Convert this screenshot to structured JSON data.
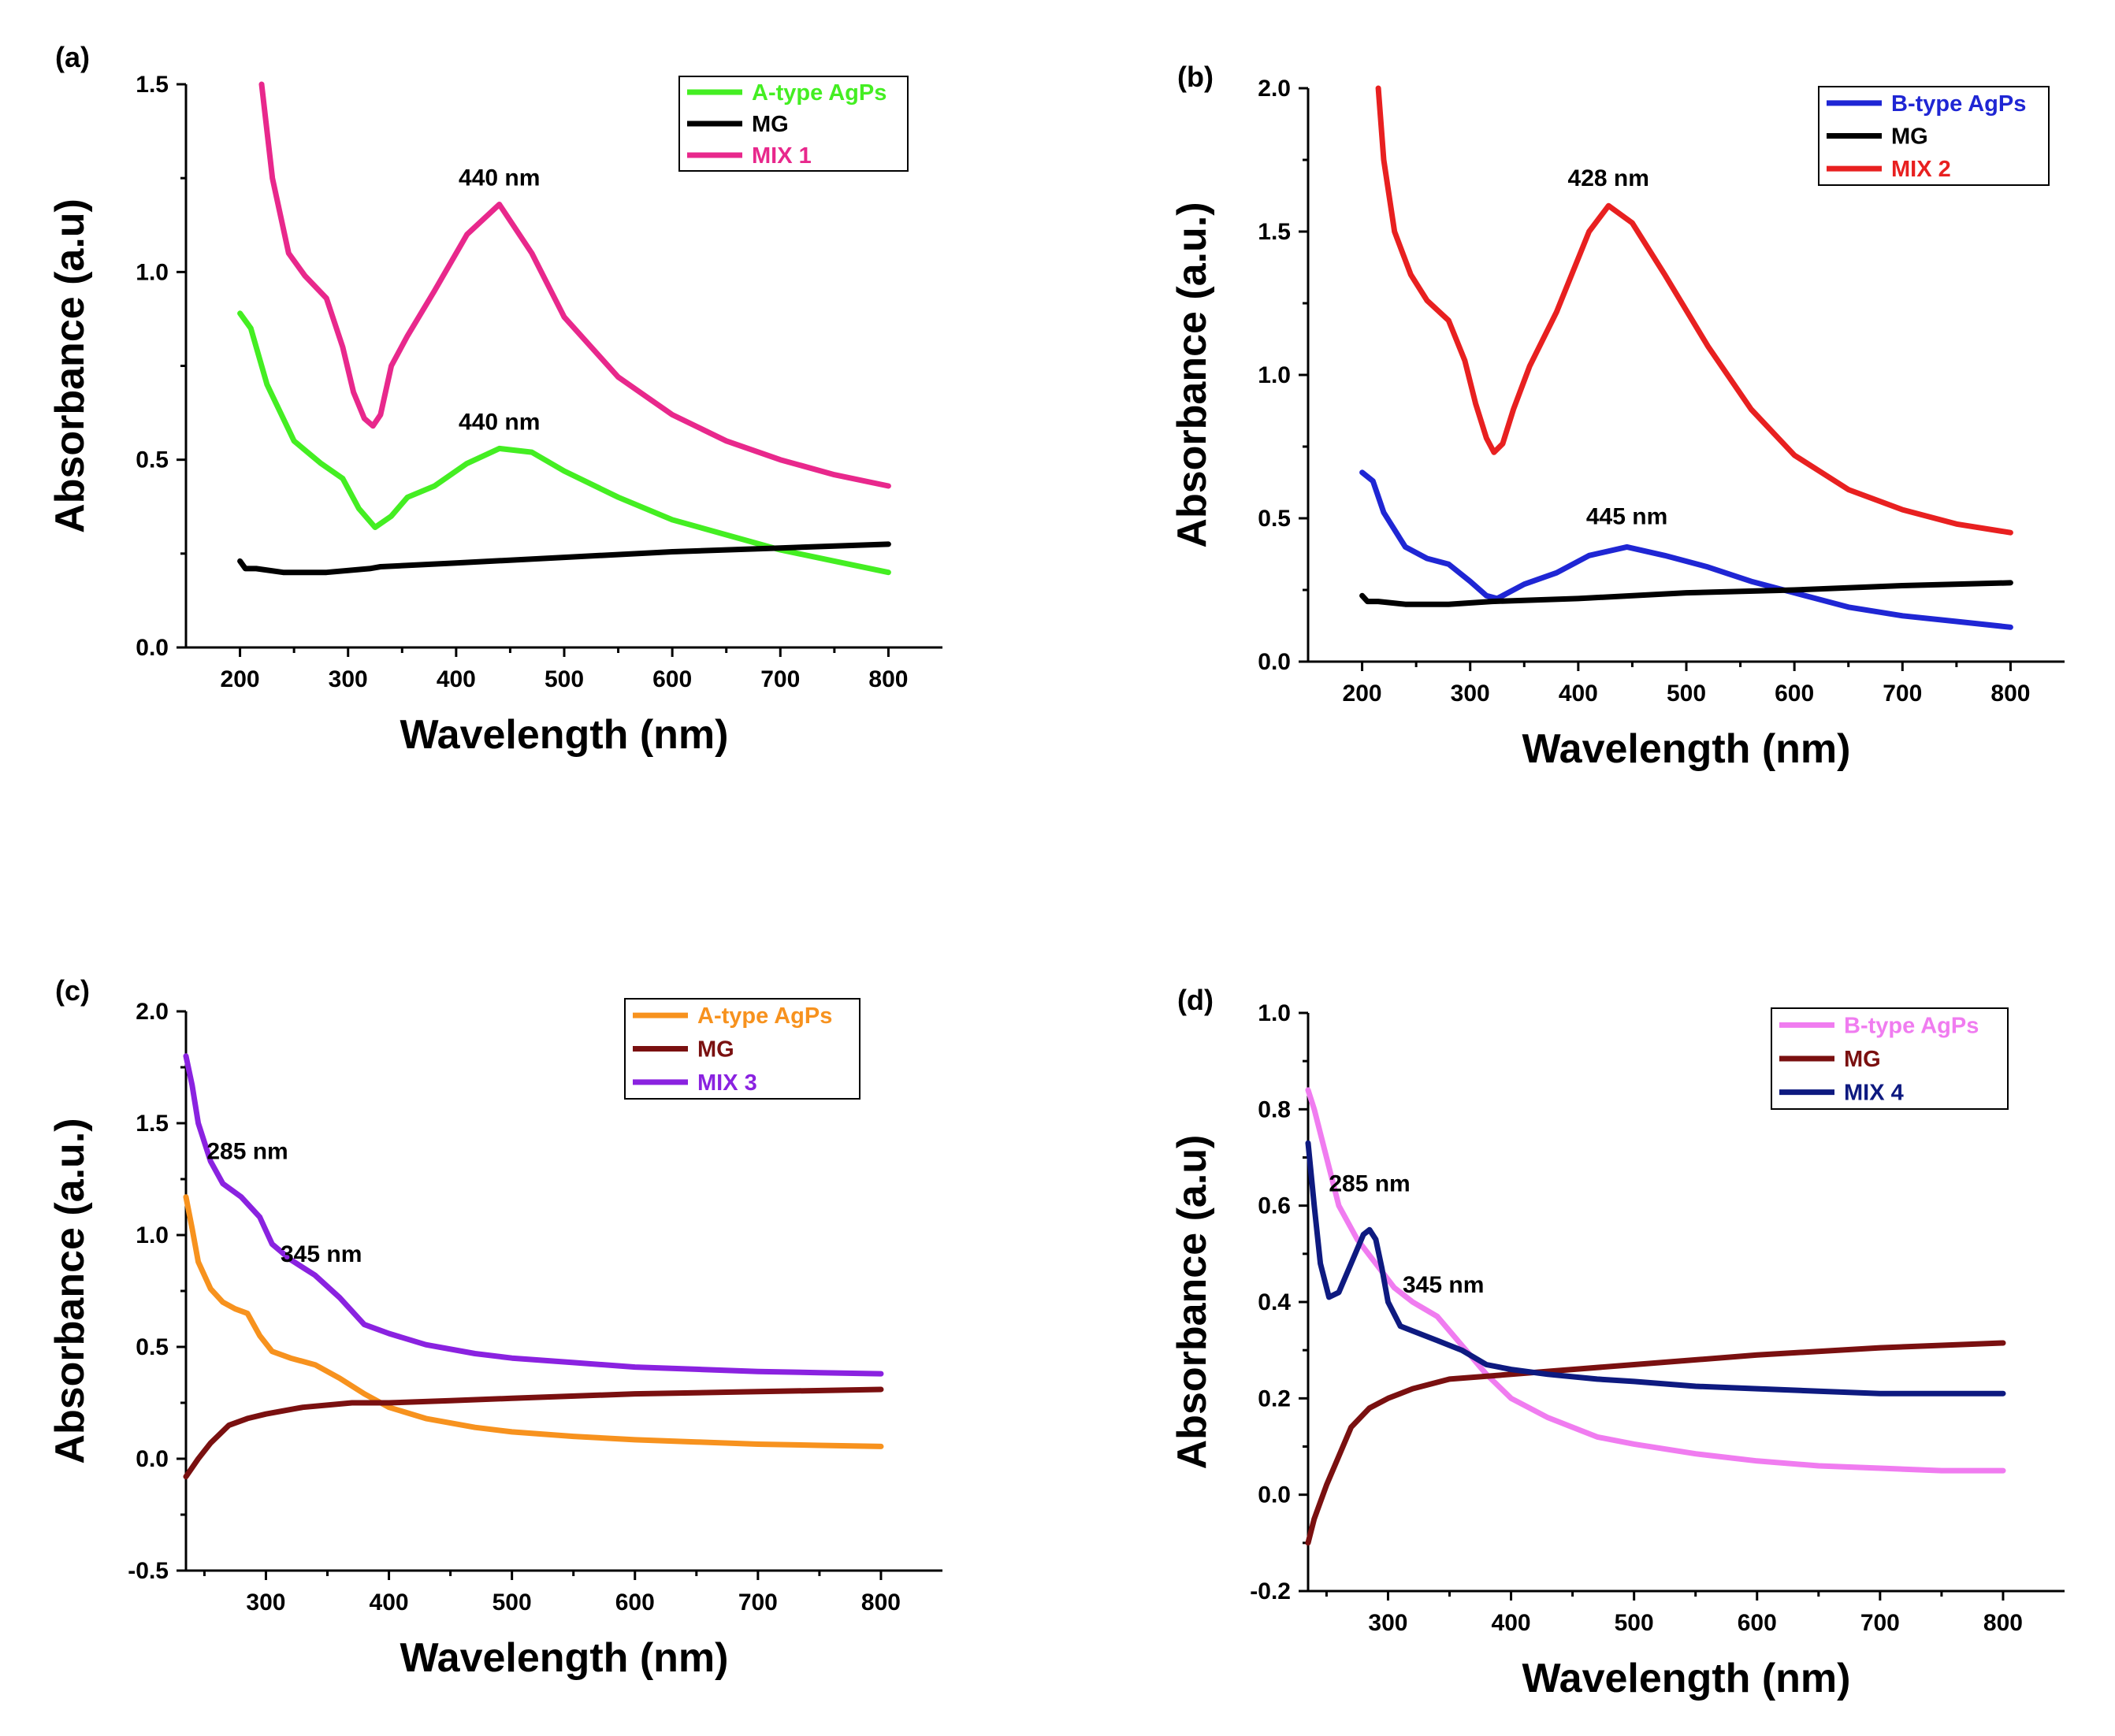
{
  "chart_data": [
    {
      "type": "line",
      "panel": "(a)",
      "xlabel": "Wavelength (nm)",
      "ylabel": "Absorbance (a.u)",
      "xlim": [
        150,
        850
      ],
      "ylim": [
        0.0,
        1.5
      ],
      "xticks": [
        200,
        300,
        400,
        500,
        600,
        700,
        800
      ],
      "yticks": [
        0.0,
        0.5,
        1.0,
        1.5
      ],
      "ytick_labels": [
        "0.0",
        "0.5",
        "1.0",
        "1.5"
      ],
      "legend_position": "top-right",
      "series": [
        {
          "name": "A-type AgPs",
          "color": "#44ee22",
          "x": [
            200,
            210,
            225,
            250,
            275,
            295,
            310,
            325,
            340,
            355,
            380,
            410,
            440,
            470,
            500,
            550,
            600,
            650,
            700,
            750,
            800
          ],
          "y": [
            0.89,
            0.85,
            0.7,
            0.55,
            0.49,
            0.45,
            0.37,
            0.32,
            0.35,
            0.4,
            0.43,
            0.49,
            0.53,
            0.52,
            0.47,
            0.4,
            0.34,
            0.3,
            0.26,
            0.23,
            0.2
          ]
        },
        {
          "name": "MG",
          "color": "#000000",
          "x": [
            200,
            205,
            215,
            240,
            280,
            320,
            330,
            400,
            500,
            600,
            700,
            800
          ],
          "y": [
            0.23,
            0.21,
            0.21,
            0.2,
            0.2,
            0.21,
            0.215,
            0.225,
            0.24,
            0.255,
            0.265,
            0.275
          ]
        },
        {
          "name": "MIX 1",
          "color": "#e8288c",
          "x": [
            220,
            230,
            245,
            260,
            280,
            295,
            305,
            315,
            323,
            330,
            340,
            355,
            380,
            410,
            440,
            470,
            500,
            550,
            600,
            650,
            700,
            750,
            800
          ],
          "y": [
            1.5,
            1.25,
            1.05,
            0.99,
            0.93,
            0.8,
            0.68,
            0.61,
            0.59,
            0.62,
            0.75,
            0.83,
            0.95,
            1.1,
            1.18,
            1.05,
            0.88,
            0.72,
            0.62,
            0.55,
            0.5,
            0.46,
            0.43
          ]
        }
      ],
      "annotations": [
        {
          "text": "440 nm",
          "x": 440,
          "y": 1.23
        },
        {
          "text": "440 nm",
          "x": 440,
          "y": 0.58
        }
      ]
    },
    {
      "type": "line",
      "panel": "(b)",
      "xlabel": "Wavelength (nm)",
      "ylabel": "Absorbance (a.u.)",
      "xlim": [
        150,
        850
      ],
      "ylim": [
        0.0,
        2.0
      ],
      "xticks": [
        200,
        300,
        400,
        500,
        600,
        700,
        800
      ],
      "yticks": [
        0.0,
        0.5,
        1.0,
        1.5,
        2.0
      ],
      "ytick_labels": [
        "0.0",
        "0.5",
        "1.0",
        "1.5",
        "2.0"
      ],
      "legend_position": "top-right",
      "series": [
        {
          "name": "B-type AgPs",
          "color": "#1f26d4",
          "x": [
            200,
            210,
            220,
            240,
            260,
            280,
            300,
            315,
            325,
            335,
            350,
            380,
            410,
            445,
            480,
            520,
            560,
            600,
            650,
            700,
            750,
            800
          ],
          "y": [
            0.66,
            0.63,
            0.52,
            0.4,
            0.36,
            0.34,
            0.28,
            0.23,
            0.22,
            0.24,
            0.27,
            0.31,
            0.37,
            0.4,
            0.37,
            0.33,
            0.28,
            0.24,
            0.19,
            0.16,
            0.14,
            0.12
          ]
        },
        {
          "name": "MG",
          "color": "#000000",
          "x": [
            200,
            205,
            215,
            240,
            280,
            320,
            400,
            500,
            600,
            700,
            800
          ],
          "y": [
            0.23,
            0.21,
            0.21,
            0.2,
            0.2,
            0.21,
            0.22,
            0.24,
            0.25,
            0.265,
            0.275
          ]
        },
        {
          "name": "MIX 2",
          "color": "#e82020",
          "x": [
            215,
            220,
            230,
            245,
            260,
            280,
            295,
            305,
            315,
            322,
            330,
            340,
            355,
            380,
            410,
            428,
            450,
            480,
            520,
            560,
            600,
            650,
            700,
            750,
            800
          ],
          "y": [
            2.0,
            1.75,
            1.5,
            1.35,
            1.26,
            1.19,
            1.05,
            0.9,
            0.78,
            0.73,
            0.76,
            0.88,
            1.03,
            1.22,
            1.5,
            1.59,
            1.53,
            1.35,
            1.1,
            0.88,
            0.72,
            0.6,
            0.53,
            0.48,
            0.45
          ]
        }
      ],
      "annotations": [
        {
          "text": "428 nm",
          "x": 428,
          "y": 1.66
        },
        {
          "text": "445 nm",
          "x": 445,
          "y": 0.48
        }
      ]
    },
    {
      "type": "line",
      "panel": "(c)",
      "xlabel": "Wavelength (nm)",
      "ylabel": "Absorbance (a.u.)",
      "xlim": [
        235,
        850
      ],
      "ylim": [
        -0.5,
        2.0
      ],
      "xticks": [
        300,
        400,
        500,
        600,
        700,
        800
      ],
      "yticks": [
        -0.5,
        0.0,
        0.5,
        1.0,
        1.5,
        2.0
      ],
      "ytick_labels": [
        "-0.5",
        "0.0",
        "0.5",
        "1.0",
        "1.5",
        "2.0"
      ],
      "legend_position": "top-right",
      "series": [
        {
          "name": "A-type AgPs",
          "color": "#f7921e",
          "x": [
            235,
            240,
            245,
            255,
            265,
            275,
            285,
            295,
            305,
            320,
            340,
            360,
            380,
            400,
            430,
            470,
            500,
            550,
            600,
            650,
            700,
            750,
            800
          ],
          "y": [
            1.17,
            1.03,
            0.88,
            0.76,
            0.7,
            0.67,
            0.65,
            0.55,
            0.48,
            0.45,
            0.42,
            0.36,
            0.29,
            0.23,
            0.18,
            0.14,
            0.12,
            0.1,
            0.085,
            0.075,
            0.065,
            0.06,
            0.055
          ]
        },
        {
          "name": "MG",
          "color": "#7a1010",
          "x": [
            235,
            245,
            255,
            270,
            285,
            300,
            330,
            370,
            400,
            450,
            500,
            600,
            700,
            800
          ],
          "y": [
            -0.08,
            0.0,
            0.07,
            0.15,
            0.18,
            0.2,
            0.23,
            0.25,
            0.25,
            0.26,
            0.27,
            0.29,
            0.3,
            0.31
          ]
        },
        {
          "name": "MIX 3",
          "color": "#8a22e0",
          "x": [
            235,
            240,
            245,
            255,
            265,
            280,
            295,
            305,
            320,
            340,
            360,
            380,
            400,
            430,
            470,
            500,
            550,
            600,
            650,
            700,
            750,
            800
          ],
          "y": [
            1.8,
            1.67,
            1.5,
            1.33,
            1.23,
            1.17,
            1.08,
            0.96,
            0.89,
            0.82,
            0.72,
            0.6,
            0.56,
            0.51,
            0.47,
            0.45,
            0.43,
            0.41,
            0.4,
            0.39,
            0.385,
            0.38
          ]
        }
      ],
      "annotations": [
        {
          "text": "285 nm",
          "x": 285,
          "y": 1.34
        },
        {
          "text": "345 nm",
          "x": 345,
          "y": 0.88
        }
      ]
    },
    {
      "type": "line",
      "panel": "(d)",
      "xlabel": "Wavelength (nm)",
      "ylabel": "Absorbance (a.u)",
      "xlim": [
        235,
        850
      ],
      "ylim": [
        -0.2,
        1.0
      ],
      "xticks": [
        300,
        400,
        500,
        600,
        700,
        800
      ],
      "yticks": [
        -0.2,
        0.0,
        0.2,
        0.4,
        0.6,
        0.8,
        1.0
      ],
      "ytick_labels": [
        "-0.2",
        "0.0",
        "0.2",
        "0.4",
        "0.6",
        "0.8",
        "1.0"
      ],
      "legend_position": "top-right",
      "series": [
        {
          "name": "B-type AgPs",
          "color": "#f07cf0",
          "x": [
            235,
            240,
            250,
            260,
            275,
            290,
            305,
            320,
            340,
            360,
            380,
            400,
            430,
            470,
            500,
            550,
            600,
            650,
            700,
            750,
            800
          ],
          "y": [
            0.84,
            0.8,
            0.7,
            0.6,
            0.53,
            0.48,
            0.43,
            0.4,
            0.37,
            0.31,
            0.25,
            0.2,
            0.16,
            0.12,
            0.105,
            0.085,
            0.07,
            0.06,
            0.055,
            0.05,
            0.05
          ]
        },
        {
          "name": "MG",
          "color": "#7a1010",
          "x": [
            235,
            240,
            250,
            260,
            270,
            285,
            300,
            320,
            350,
            400,
            450,
            500,
            600,
            700,
            800
          ],
          "y": [
            -0.1,
            -0.05,
            0.02,
            0.08,
            0.14,
            0.18,
            0.2,
            0.22,
            0.24,
            0.25,
            0.26,
            0.27,
            0.29,
            0.305,
            0.315
          ]
        },
        {
          "name": "MIX 4",
          "color": "#0e1a80",
          "x": [
            235,
            240,
            245,
            252,
            260,
            270,
            280,
            285,
            290,
            295,
            300,
            310,
            320,
            340,
            360,
            380,
            400,
            430,
            470,
            500,
            550,
            600,
            650,
            700,
            750,
            800
          ],
          "y": [
            0.73,
            0.6,
            0.48,
            0.41,
            0.42,
            0.48,
            0.54,
            0.55,
            0.53,
            0.47,
            0.4,
            0.35,
            0.34,
            0.32,
            0.3,
            0.27,
            0.26,
            0.25,
            0.24,
            0.235,
            0.225,
            0.22,
            0.215,
            0.21,
            0.21,
            0.21
          ]
        }
      ],
      "annotations": [
        {
          "text": "285 nm",
          "x": 285,
          "y": 0.63
        },
        {
          "text": "345 nm",
          "x": 345,
          "y": 0.42
        }
      ]
    }
  ]
}
